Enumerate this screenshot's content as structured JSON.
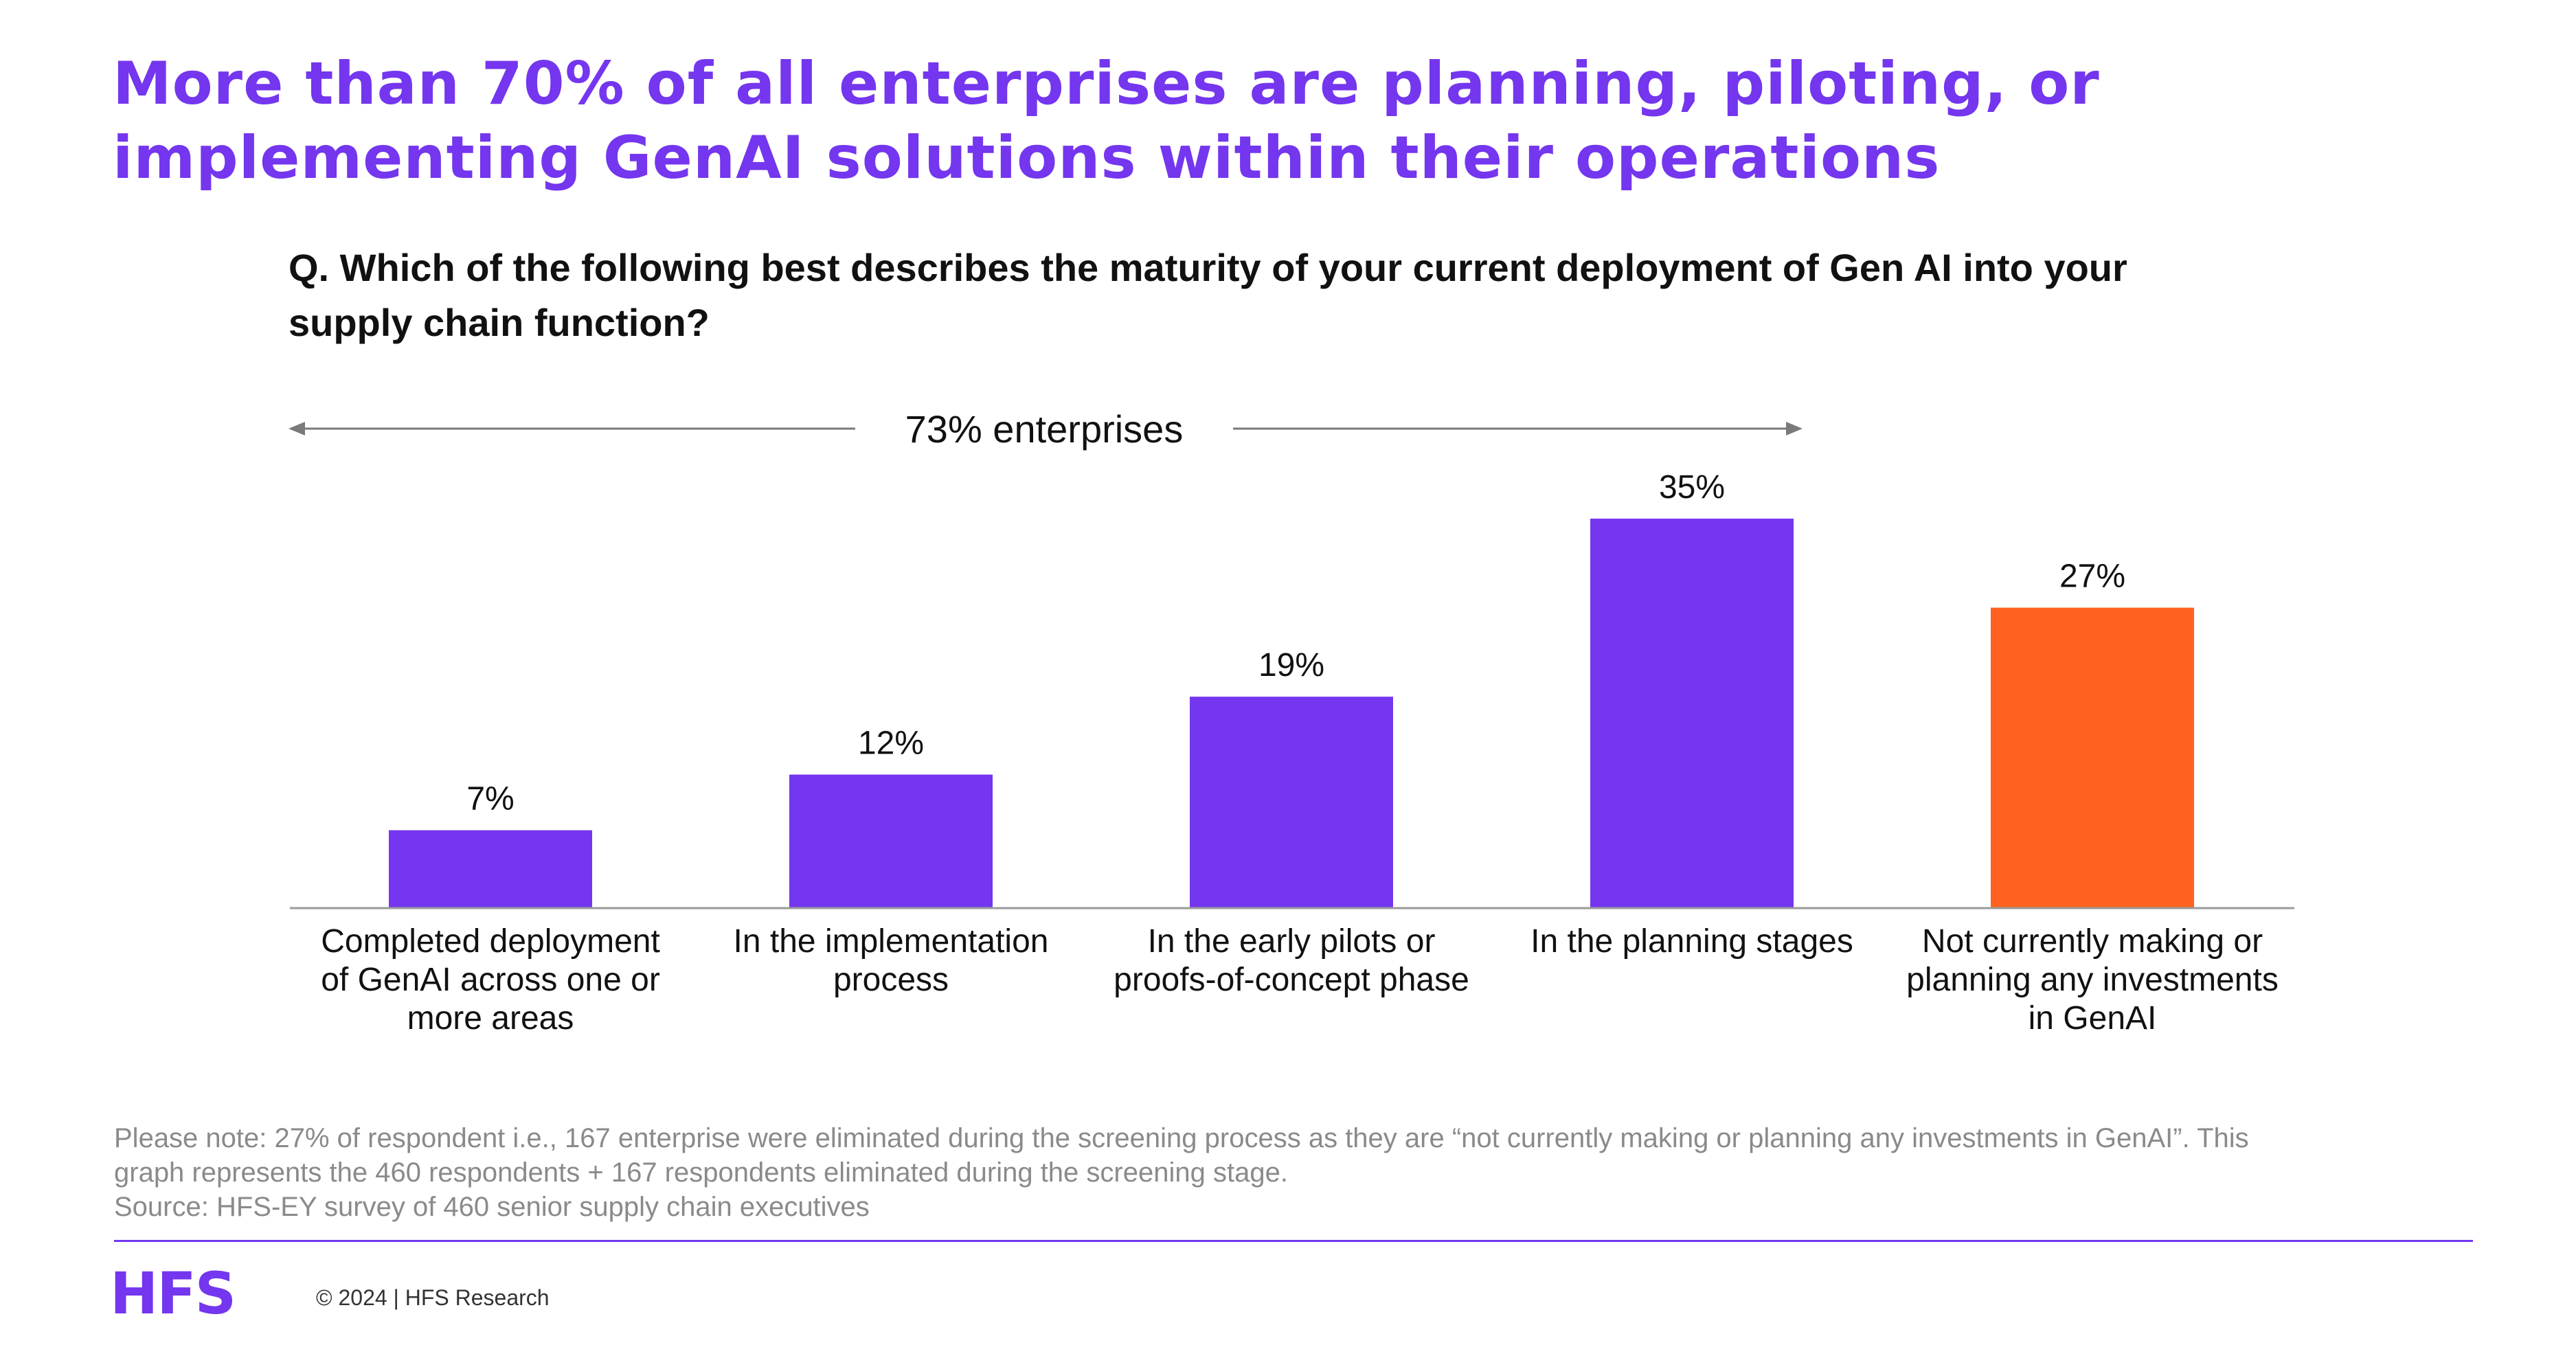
{
  "headline": {
    "line1": "More than 70% of all enterprises are planning, piloting, or",
    "line2": "implementing GenAI solutions within their operations"
  },
  "question": {
    "line1": "Q. Which of the following best describes the maturity of your current deployment of Gen AI into your",
    "line2": "supply chain function?"
  },
  "span_annotation": "73% enterprises",
  "colors": {
    "accent": "#7436ee",
    "highlight": "#ff6220",
    "arrow": "#7a7a7a",
    "axis": "#9a9a9a"
  },
  "chart_data": {
    "type": "bar",
    "categories": [
      [
        "Completed deployment",
        "of GenAI across one or",
        "more areas"
      ],
      [
        "In the implementation",
        "process"
      ],
      [
        "In the early pilots or",
        "proofs-of-concept phase"
      ],
      [
        "In the planning stages"
      ],
      [
        "Not currently making or",
        "planning any investments",
        "in GenAI"
      ]
    ],
    "values": [
      7,
      12,
      19,
      35,
      27
    ],
    "value_labels": [
      "7%",
      "12%",
      "19%",
      "35%",
      "27%"
    ],
    "highlighted_index": 4,
    "ylim": [
      0,
      35
    ],
    "grid": false
  },
  "note": {
    "line1": "Please note: 27% of respondent i.e., 167 enterprise were eliminated during the screening process as they are “not currently making or planning any investments in GenAI”. This",
    "line2": "graph represents the 460 respondents + 167 respondents eliminated during the screening stage.",
    "source": "Source: HFS-EY survey of 460 senior supply chain executives"
  },
  "footer": {
    "logo": "HFS",
    "copyright": "© 2024 | HFS Research"
  }
}
